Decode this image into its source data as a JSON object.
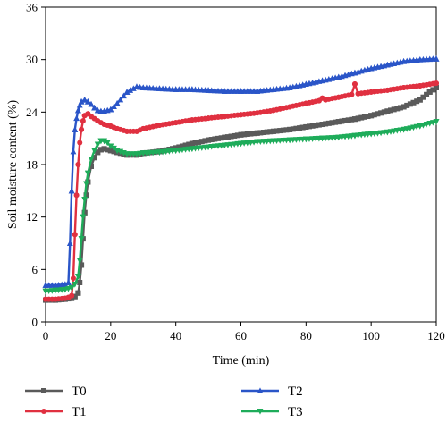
{
  "chart_data": {
    "type": "line",
    "title": "",
    "xlabel": "Time (min)",
    "ylabel": "Soil moisture content (%)",
    "xlim": [
      0,
      120
    ],
    "ylim": [
      0,
      36
    ],
    "xticks": [
      0,
      20,
      40,
      60,
      80,
      100,
      120
    ],
    "yticks": [
      0,
      6,
      12,
      18,
      24,
      30,
      36
    ],
    "grid": false,
    "legend_position": "bottom",
    "series": [
      {
        "name": "T0",
        "color": "#5a5a5a",
        "marker": "square",
        "x": [
          0,
          3,
          6,
          8,
          9,
          10,
          10.5,
          11,
          11.5,
          12,
          12.5,
          13,
          14,
          15,
          16,
          17,
          18,
          20,
          22,
          25,
          28,
          30,
          35,
          40,
          45,
          50,
          55,
          60,
          65,
          70,
          75,
          80,
          85,
          90,
          95,
          100,
          105,
          110,
          115,
          118,
          120
        ],
        "y": [
          2.5,
          2.5,
          2.6,
          2.7,
          2.9,
          3.3,
          4.5,
          6.5,
          9.5,
          12.5,
          14.5,
          16.0,
          17.8,
          18.8,
          19.4,
          19.7,
          19.8,
          19.6,
          19.4,
          19.1,
          19.1,
          19.3,
          19.5,
          19.9,
          20.4,
          20.8,
          21.1,
          21.4,
          21.6,
          21.8,
          22.0,
          22.3,
          22.6,
          22.9,
          23.2,
          23.6,
          24.1,
          24.6,
          25.4,
          26.3,
          26.8
        ]
      },
      {
        "name": "T1",
        "color": "#e03040",
        "marker": "circle",
        "x": [
          0,
          3,
          6,
          7,
          8,
          8.5,
          9,
          9.5,
          10,
          10.5,
          11,
          11.5,
          12,
          13,
          14,
          16,
          18,
          20,
          22,
          25,
          28,
          30,
          35,
          40,
          45,
          50,
          55,
          60,
          65,
          70,
          75,
          80,
          84,
          85,
          86,
          90,
          94,
          95,
          96,
          100,
          105,
          110,
          115,
          120
        ],
        "y": [
          2.6,
          2.6,
          2.7,
          2.8,
          3.0,
          5.0,
          10.0,
          14.5,
          18.0,
          20.5,
          22.0,
          23.0,
          23.6,
          23.8,
          23.5,
          23.0,
          22.6,
          22.4,
          22.1,
          21.8,
          21.8,
          22.1,
          22.5,
          22.8,
          23.1,
          23.3,
          23.5,
          23.7,
          23.9,
          24.2,
          24.6,
          25.0,
          25.3,
          25.6,
          25.4,
          25.7,
          26.0,
          27.2,
          26.1,
          26.3,
          26.5,
          26.8,
          27.0,
          27.3
        ]
      },
      {
        "name": "T2",
        "color": "#2a55c8",
        "marker": "triangle-up",
        "x": [
          0,
          3,
          6,
          7,
          7.5,
          8,
          8.5,
          9,
          9.5,
          10,
          10.5,
          11,
          12,
          13,
          14,
          15,
          16,
          17,
          18,
          20,
          22,
          25,
          28,
          30,
          35,
          40,
          45,
          50,
          55,
          60,
          65,
          70,
          75,
          80,
          85,
          90,
          95,
          100,
          105,
          110,
          115,
          120
        ],
        "y": [
          4.2,
          4.2,
          4.3,
          4.5,
          9.0,
          15.0,
          19.5,
          22.0,
          23.3,
          24.2,
          24.8,
          25.2,
          25.4,
          25.2,
          24.9,
          24.5,
          24.2,
          24.1,
          24.1,
          24.3,
          25.0,
          26.3,
          26.9,
          26.8,
          26.7,
          26.6,
          26.6,
          26.5,
          26.4,
          26.4,
          26.4,
          26.6,
          26.8,
          27.2,
          27.6,
          28.0,
          28.5,
          29.0,
          29.4,
          29.8,
          30.0,
          30.1
        ]
      },
      {
        "name": "T3",
        "color": "#1eac5a",
        "marker": "triangle-down",
        "x": [
          0,
          3,
          6,
          8,
          9,
          10,
          10.5,
          11,
          11.5,
          12,
          12.5,
          13,
          14,
          15,
          16,
          17,
          18,
          19,
          20,
          22,
          25,
          28,
          30,
          35,
          40,
          45,
          50,
          55,
          60,
          65,
          70,
          75,
          80,
          85,
          90,
          95,
          100,
          105,
          110,
          115,
          120
        ],
        "y": [
          3.5,
          3.6,
          3.7,
          3.9,
          4.3,
          5.2,
          7.0,
          9.5,
          12.0,
          14.0,
          15.8,
          17.0,
          18.6,
          19.6,
          20.3,
          20.7,
          20.7,
          20.5,
          20.1,
          19.6,
          19.2,
          19.2,
          19.3,
          19.4,
          19.6,
          19.8,
          20.0,
          20.2,
          20.4,
          20.6,
          20.7,
          20.8,
          20.9,
          21.0,
          21.1,
          21.3,
          21.5,
          21.7,
          22.0,
          22.4,
          22.9
        ]
      }
    ]
  }
}
